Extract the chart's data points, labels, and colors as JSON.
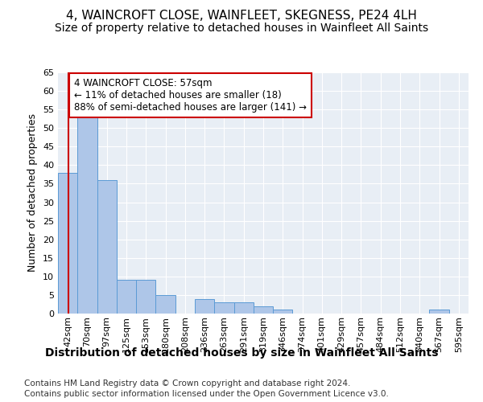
{
  "title": "4, WAINCROFT CLOSE, WAINFLEET, SKEGNESS, PE24 4LH",
  "subtitle": "Size of property relative to detached houses in Wainfleet All Saints",
  "xlabel_bottom": "Distribution of detached houses by size in Wainfleet All Saints",
  "ylabel": "Number of detached properties",
  "footer_line1": "Contains HM Land Registry data © Crown copyright and database right 2024.",
  "footer_line2": "Contains public sector information licensed under the Open Government Licence v3.0.",
  "bar_labels": [
    "42sqm",
    "70sqm",
    "97sqm",
    "125sqm",
    "153sqm",
    "180sqm",
    "208sqm",
    "236sqm",
    "263sqm",
    "291sqm",
    "319sqm",
    "346sqm",
    "374sqm",
    "401sqm",
    "429sqm",
    "457sqm",
    "484sqm",
    "512sqm",
    "540sqm",
    "567sqm",
    "595sqm"
  ],
  "bar_values": [
    38,
    54,
    36,
    9,
    9,
    5,
    0,
    4,
    3,
    3,
    2,
    1,
    0,
    0,
    0,
    0,
    0,
    0,
    0,
    1,
    0
  ],
  "bar_color": "#aec6e8",
  "bar_edgecolor": "#5b9bd5",
  "vline_color": "#cc0000",
  "property_line_label": "4 WAINCROFT CLOSE: 57sqm",
  "annotation_line1": "← 11% of detached houses are smaller (18)",
  "annotation_line2": "88% of semi-detached houses are larger (141) →",
  "annotation_box_edgecolor": "#cc0000",
  "ylim": [
    0,
    65
  ],
  "yticks": [
    0,
    5,
    10,
    15,
    20,
    25,
    30,
    35,
    40,
    45,
    50,
    55,
    60,
    65
  ],
  "background_color": "#e8eef5",
  "grid_color": "#ffffff",
  "title_fontsize": 11,
  "subtitle_fontsize": 10,
  "axis_label_fontsize": 9,
  "tick_fontsize": 8,
  "annotation_fontsize": 8.5,
  "footer_fontsize": 7.5
}
